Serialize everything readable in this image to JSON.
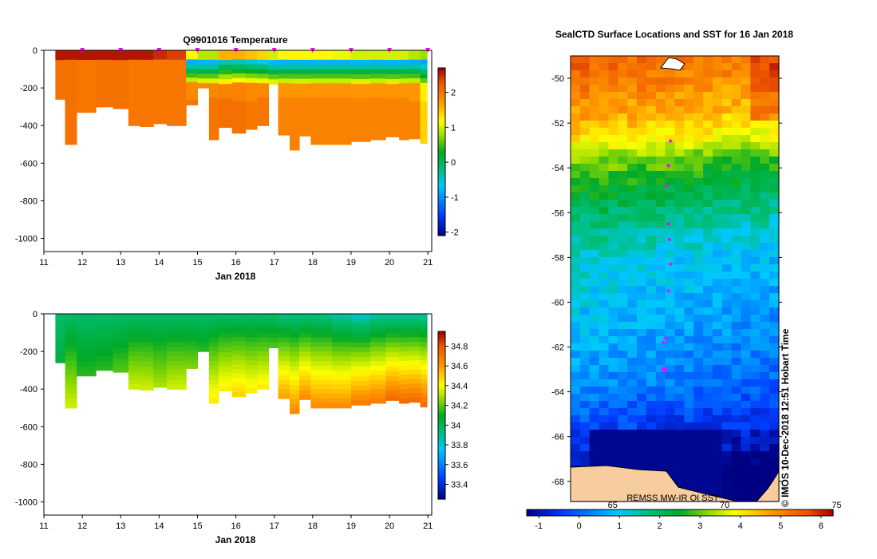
{
  "chart_data": [
    {
      "type": "heatmap",
      "title": "Q9901016  Temperature",
      "xlabel": "Jan 2018",
      "ylabel": "",
      "xlim": [
        11,
        21.1
      ],
      "ylim": [
        -1070,
        0
      ],
      "xticks": [
        "11",
        "12",
        "13",
        "14",
        "15",
        "16",
        "17",
        "18",
        "19",
        "20",
        "21"
      ],
      "yticks": [
        "0",
        "-200",
        "-400",
        "-600",
        "-800",
        "-1000"
      ],
      "colorbar": {
        "min": -2.1,
        "max": 2.7,
        "ticks": [
          "-2",
          "-1",
          "0",
          "1",
          "2"
        ]
      },
      "profiles": [
        {
          "t": 11.3,
          "bottom": -260,
          "surface": 2.6,
          "deep": 2.05
        },
        {
          "t": 11.55,
          "bottom": -500,
          "surface": 2.6,
          "deep": 2.05
        },
        {
          "t": 11.85,
          "bottom": -330,
          "surface": 2.6,
          "deep": 2.0
        },
        {
          "t": 12.35,
          "bottom": -300,
          "surface": 2.6,
          "deep": 2.05
        },
        {
          "t": 12.8,
          "bottom": -310,
          "surface": 2.6,
          "deep": 2.05
        },
        {
          "t": 13.2,
          "bottom": -400,
          "surface": 2.6,
          "deep": 2.0
        },
        {
          "t": 13.5,
          "bottom": -405,
          "surface": 2.6,
          "deep": 2.0
        },
        {
          "t": 13.85,
          "bottom": -390,
          "surface": 2.5,
          "deep": 2.0
        },
        {
          "t": 14.2,
          "bottom": -400,
          "surface": 2.4,
          "deep": 2.0
        },
        {
          "t": 14.7,
          "bottom": -290,
          "surface": 1.2,
          "deep": 2.0
        },
        {
          "t": 15.0,
          "bottom": -200,
          "surface": 0.9,
          "deep": 2.0
        },
        {
          "t": 15.3,
          "bottom": -475,
          "surface": 0.9,
          "deep": 2.0
        },
        {
          "t": 15.55,
          "bottom": -410,
          "surface": 1.6,
          "deep": 2.05
        },
        {
          "t": 15.9,
          "bottom": -440,
          "surface": 1.6,
          "deep": 2.05
        },
        {
          "t": 16.25,
          "bottom": -420,
          "surface": 1.5,
          "deep": 2.0
        },
        {
          "t": 16.55,
          "bottom": -400,
          "surface": 1.4,
          "deep": 2.0
        },
        {
          "t": 16.85,
          "bottom": -180,
          "surface": 1.0,
          "deep": 1.9
        },
        {
          "t": 17.1,
          "bottom": -450,
          "surface": 1.2,
          "deep": 1.9
        },
        {
          "t": 17.4,
          "bottom": -530,
          "surface": 1.2,
          "deep": 1.9
        },
        {
          "t": 17.65,
          "bottom": -455,
          "surface": 1.2,
          "deep": 1.9
        },
        {
          "t": 17.95,
          "bottom": -500,
          "surface": 1.2,
          "deep": 1.9
        },
        {
          "t": 18.5,
          "bottom": -500,
          "surface": 1.1,
          "deep": 1.9
        },
        {
          "t": 19.0,
          "bottom": -485,
          "surface": 1.0,
          "deep": 1.9
        },
        {
          "t": 19.5,
          "bottom": -475,
          "surface": 1.0,
          "deep": 1.9
        },
        {
          "t": 19.9,
          "bottom": -460,
          "surface": 1.0,
          "deep": 1.9
        },
        {
          "t": 20.25,
          "bottom": -475,
          "surface": 1.0,
          "deep": 1.9
        },
        {
          "t": 20.5,
          "bottom": -470,
          "surface": 0.9,
          "deep": 1.9
        },
        {
          "t": 20.8,
          "bottom": -495,
          "surface": 0.8,
          "deep": 1.4
        }
      ],
      "markers": [
        12,
        13,
        14,
        15,
        16,
        17,
        18,
        19,
        20,
        21
      ]
    },
    {
      "type": "heatmap",
      "title": "",
      "xlabel": "Jan 2018",
      "ylabel": "",
      "xlim": [
        11,
        21.1
      ],
      "ylim": [
        -1070,
        0
      ],
      "xticks": [
        "11",
        "12",
        "13",
        "14",
        "15",
        "16",
        "17",
        "18",
        "19",
        "20",
        "21"
      ],
      "yticks": [
        "0",
        "-200",
        "-400",
        "-600",
        "-800",
        "-1000"
      ],
      "colorbar": {
        "min": 33.25,
        "max": 34.95,
        "ticks": [
          "33.4",
          "33.6",
          "33.8",
          "34",
          "34.2",
          "34.4",
          "34.6",
          "34.8"
        ]
      },
      "profiles": [
        {
          "t": 11.3,
          "bottom": -260,
          "surface": 33.95,
          "deep": 34.05
        },
        {
          "t": 11.55,
          "bottom": -500,
          "surface": 33.95,
          "deep": 34.35
        },
        {
          "t": 11.85,
          "bottom": -330,
          "surface": 33.95,
          "deep": 34.15
        },
        {
          "t": 12.35,
          "bottom": -300,
          "surface": 33.95,
          "deep": 34.15
        },
        {
          "t": 12.8,
          "bottom": -310,
          "surface": 33.95,
          "deep": 34.2
        },
        {
          "t": 13.2,
          "bottom": -400,
          "surface": 33.95,
          "deep": 34.35
        },
        {
          "t": 13.5,
          "bottom": -405,
          "surface": 33.95,
          "deep": 34.35
        },
        {
          "t": 13.85,
          "bottom": -390,
          "surface": 33.95,
          "deep": 34.3
        },
        {
          "t": 14.2,
          "bottom": -400,
          "surface": 33.95,
          "deep": 34.35
        },
        {
          "t": 14.7,
          "bottom": -290,
          "surface": 33.95,
          "deep": 34.25
        },
        {
          "t": 15.0,
          "bottom": -200,
          "surface": 33.95,
          "deep": 34.15
        },
        {
          "t": 15.3,
          "bottom": -475,
          "surface": 33.95,
          "deep": 34.45
        },
        {
          "t": 15.55,
          "bottom": -410,
          "surface": 33.95,
          "deep": 34.45
        },
        {
          "t": 15.9,
          "bottom": -440,
          "surface": 33.95,
          "deep": 34.5
        },
        {
          "t": 16.25,
          "bottom": -420,
          "surface": 33.95,
          "deep": 34.45
        },
        {
          "t": 16.55,
          "bottom": -400,
          "surface": 33.95,
          "deep": 34.45
        },
        {
          "t": 16.85,
          "bottom": -180,
          "surface": 33.95,
          "deep": 34.2
        },
        {
          "t": 17.1,
          "bottom": -450,
          "surface": 33.9,
          "deep": 34.6
        },
        {
          "t": 17.4,
          "bottom": -530,
          "surface": 33.9,
          "deep": 34.65
        },
        {
          "t": 17.65,
          "bottom": -455,
          "surface": 33.9,
          "deep": 34.65
        },
        {
          "t": 17.95,
          "bottom": -500,
          "surface": 33.9,
          "deep": 34.65
        },
        {
          "t": 18.5,
          "bottom": -500,
          "surface": 33.85,
          "deep": 34.65
        },
        {
          "t": 19.0,
          "bottom": -485,
          "surface": 33.8,
          "deep": 34.7
        },
        {
          "t": 19.5,
          "bottom": -475,
          "surface": 33.85,
          "deep": 34.7
        },
        {
          "t": 19.9,
          "bottom": -460,
          "surface": 33.85,
          "deep": 34.75
        },
        {
          "t": 20.25,
          "bottom": -475,
          "surface": 33.85,
          "deep": 34.75
        },
        {
          "t": 20.5,
          "bottom": -470,
          "surface": 33.85,
          "deep": 34.75
        },
        {
          "t": 20.8,
          "bottom": -495,
          "surface": 33.85,
          "deep": 34.75
        }
      ],
      "markers": []
    },
    {
      "type": "heatmap",
      "title": "SealCTD Surface Locations and SST for 16 Jan 2018",
      "xlabel": "",
      "ylabel": "",
      "ylim": [
        -68.9,
        -49
      ],
      "yticks": [
        "-50",
        "-52",
        "-54",
        "-56",
        "-58",
        "-60",
        "-62",
        "-64",
        "-66",
        "-68"
      ],
      "colorbar": {
        "min": -1.3,
        "max": 6.3,
        "ticks": [
          "-1",
          "0",
          "1",
          "2",
          "3",
          "4",
          "5",
          "6"
        ],
        "fahrenheit_ticks": [
          "65",
          "70",
          "75"
        ]
      },
      "sst_bands": [
        {
          "lat": -49.2,
          "sst": 5.5
        },
        {
          "lat": -51,
          "sst": 5.0
        },
        {
          "lat": -52.5,
          "sst": 4.3
        },
        {
          "lat": -53.5,
          "sst": 3.3
        },
        {
          "lat": -55,
          "sst": 2.5
        },
        {
          "lat": -56.5,
          "sst": 1.8
        },
        {
          "lat": -58,
          "sst": 1.3
        },
        {
          "lat": -61,
          "sst": 0.9
        },
        {
          "lat": -63.5,
          "sst": 0.5
        },
        {
          "lat": -65.5,
          "sst": -0.2
        },
        {
          "lat": -67,
          "sst": -0.8
        },
        {
          "lat": -68.9,
          "sst": -1.1
        }
      ],
      "seal_positions": [
        {
          "lat": -52.8,
          "lon_frac": 0.48,
          "size": "small"
        },
        {
          "lat": -53.9,
          "lon_frac": 0.47,
          "size": "small"
        },
        {
          "lat": -54.8,
          "lon_frac": 0.46,
          "size": "small"
        },
        {
          "lat": -56.5,
          "lon_frac": 0.47,
          "size": "small"
        },
        {
          "lat": -57.2,
          "lon_frac": 0.475,
          "size": "small"
        },
        {
          "lat": -58.3,
          "lon_frac": 0.48,
          "size": "small"
        },
        {
          "lat": -59.5,
          "lon_frac": 0.47,
          "size": "small"
        },
        {
          "lat": -61.6,
          "lon_frac": 0.455,
          "size": "small"
        },
        {
          "lat": -61.8,
          "lon_frac": 0.445,
          "size": "small"
        },
        {
          "lat": -63.0,
          "lon_frac": 0.45,
          "size": "large"
        }
      ],
      "annotations": [
        "REMSS MW-IR OI SST",
        "© IMOS 10-Dec-2018 12:51 Hobart Time"
      ]
    }
  ],
  "colors": {
    "land": "#f7cc9e",
    "marker": "#ff00ff",
    "ice": "#00008c"
  }
}
